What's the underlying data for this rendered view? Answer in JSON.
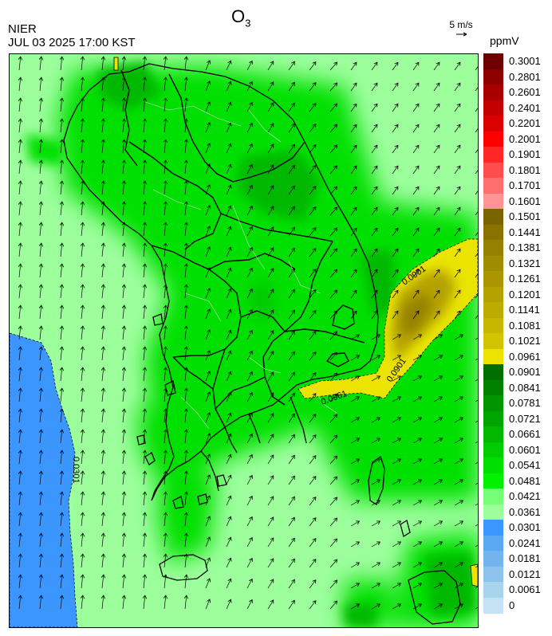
{
  "header": {
    "agency": "NIER",
    "timestamp": "JUL 03 2025 17:00 KST",
    "species": "O",
    "species_subscript": "3",
    "reference_vector": "5 m/s",
    "unit": "ppmV"
  },
  "contour_labels": [
    "0.0901",
    "0.0901",
    "0.0961",
    "0.0301"
  ],
  "legend": {
    "labels": [
      "0.3001",
      "0.2801",
      "0.2601",
      "0.2401",
      "0.2201",
      "0.2001",
      "0.1901",
      "0.1801",
      "0.1701",
      "0.1601",
      "0.1501",
      "0.1441",
      "0.1381",
      "0.1321",
      "0.1261",
      "0.1201",
      "0.1141",
      "0.1081",
      "0.1021",
      "0.0961",
      "0.0901",
      "0.0841",
      "0.0781",
      "0.0721",
      "0.0661",
      "0.0601",
      "0.0541",
      "0.0481",
      "0.0421",
      "0.0361",
      "0.0301",
      "0.0241",
      "0.0181",
      "0.0121",
      "0.0061",
      "0"
    ],
    "colors": [
      "#6e0000",
      "#8c0000",
      "#a80000",
      "#c40000",
      "#dc0000",
      "#ff0000",
      "#ff2626",
      "#ff4c4c",
      "#ff6e6e",
      "#ff9494",
      "#7a6400",
      "#8a7200",
      "#958000",
      "#a08c00",
      "#aa9600",
      "#b4a200",
      "#bcac00",
      "#c6b800",
      "#d0c400",
      "#eae400",
      "#006e00",
      "#008200",
      "#009400",
      "#00a600",
      "#00b800",
      "#00cc00",
      "#00e000",
      "#00f000",
      "#78ff78",
      "#9cff9c",
      "#3c96ff",
      "#5aa8f0",
      "#74b4ec",
      "#8cc2ec",
      "#a8d4ee",
      "#c4e2f4"
    ]
  },
  "colors": {
    "sea_blue": "#3c96ff",
    "low_green": "#9cff9c",
    "mid_green": "#00e000",
    "dark_green": "#00a600",
    "yellow_high": "#eae400",
    "olive_peak": "#958000"
  }
}
